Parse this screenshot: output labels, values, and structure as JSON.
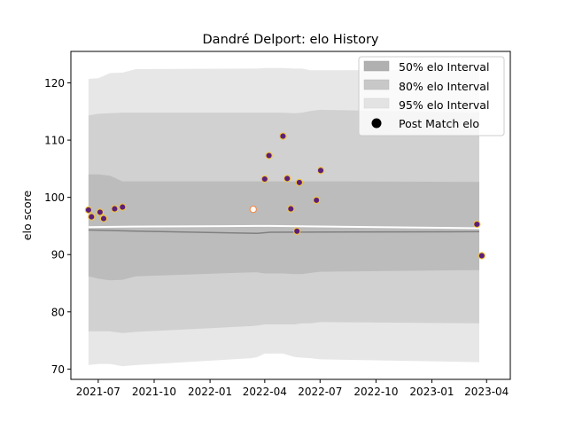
{
  "chart_data": {
    "type": "scatter",
    "title": "Dandré Delport: elo History",
    "xlabel": "",
    "ylabel": "elo score",
    "xlim": [
      "2021-05-17",
      "2023-05-10"
    ],
    "ylim": [
      68.2,
      125.5
    ],
    "x_ticks": [
      "2021-07-01",
      "2021-10-01",
      "2022-01-01",
      "2022-04-01",
      "2022-07-01",
      "2022-10-01",
      "2023-01-01",
      "2023-04-01"
    ],
    "x_tick_labels": [
      "2021-07",
      "2021-10",
      "2022-01",
      "2022-04",
      "2022-07",
      "2022-10",
      "2023-01",
      "2023-04"
    ],
    "y_ticks": [
      70,
      80,
      90,
      100,
      110,
      120
    ],
    "y_tick_labels": [
      "70",
      "80",
      "90",
      "100",
      "110",
      "120"
    ],
    "grid": false,
    "legend_position": "top-right",
    "legend": [
      {
        "label": "50% elo Interval",
        "kind": "band",
        "color": "#b0b0b0"
      },
      {
        "label": "80% elo Interval",
        "kind": "band",
        "color": "#c8c8c8"
      },
      {
        "label": "95% elo Interval",
        "kind": "band",
        "color": "#e3e3e3"
      },
      {
        "label": "Post Match elo",
        "kind": "marker",
        "color": "#000000"
      }
    ],
    "bands": {
      "x": [
        "2021-06-15",
        "2021-07-01",
        "2021-07-20",
        "2021-08-10",
        "2021-09-01",
        "2022-03-10",
        "2022-03-20",
        "2022-04-01",
        "2022-05-01",
        "2022-05-20",
        "2022-06-01",
        "2022-06-15",
        "2022-07-01",
        "2023-03-20"
      ],
      "band_95": {
        "color": "#e3e3e3",
        "lower": [
          70.7,
          70.9,
          70.9,
          70.5,
          70.7,
          71.9,
          72.1,
          72.7,
          72.7,
          72.1,
          72.0,
          71.9,
          71.7,
          71.2
        ],
        "upper": [
          120.7,
          120.8,
          121.7,
          121.8,
          122.4,
          122.5,
          122.5,
          122.6,
          122.6,
          122.5,
          122.5,
          122.2,
          122.2,
          122.3
        ]
      },
      "band_80": {
        "color": "#cccccc",
        "lower": [
          76.6,
          76.6,
          76.6,
          76.3,
          76.5,
          77.5,
          77.6,
          77.8,
          77.8,
          77.8,
          78.0,
          78.0,
          78.2,
          78.0
        ],
        "upper": [
          114.3,
          114.6,
          114.7,
          114.8,
          114.8,
          114.8,
          114.8,
          114.8,
          114.8,
          114.7,
          114.8,
          115.1,
          115.3,
          114.8
        ]
      },
      "band_50": {
        "color": "#b8b8b8",
        "lower": [
          86.2,
          85.8,
          85.5,
          85.6,
          86.2,
          86.9,
          86.9,
          86.7,
          86.7,
          86.6,
          86.6,
          86.8,
          87.0,
          87.3
        ],
        "upper": [
          104.0,
          104.0,
          103.8,
          102.8,
          102.8,
          102.8,
          102.8,
          102.8,
          102.8,
          102.8,
          102.8,
          102.8,
          102.8,
          102.7
        ]
      }
    },
    "lines": [
      {
        "role": "mean",
        "color": "#808080",
        "x": [
          "2021-06-15",
          "2021-09-01",
          "2022-03-20",
          "2022-04-10",
          "2023-03-20"
        ],
        "y": [
          94.3,
          94.1,
          93.7,
          93.9,
          94.0
        ]
      },
      {
        "role": "expected",
        "color": "#ffffff",
        "x": [
          "2021-06-15",
          "2021-09-01",
          "2022-03-20",
          "2022-04-10",
          "2023-03-20"
        ],
        "y": [
          94.8,
          94.9,
          95.0,
          95.0,
          94.6
        ]
      }
    ],
    "series": [
      {
        "name": "Post Match elo",
        "fill": "#5c1f7a",
        "edge": "#f2c53d",
        "x": [
          "2021-06-15",
          "2021-06-20",
          "2021-07-04",
          "2021-07-10",
          "2021-07-28",
          "2021-08-10",
          "2022-04-01",
          "2022-04-08",
          "2022-05-01",
          "2022-05-08",
          "2022-05-14",
          "2022-05-24",
          "2022-05-28",
          "2022-06-25",
          "2022-07-02",
          "2023-03-16",
          "2023-03-24"
        ],
        "y": [
          97.8,
          96.6,
          97.4,
          96.3,
          98.0,
          98.3,
          103.2,
          107.3,
          110.7,
          103.3,
          98.0,
          94.1,
          102.6,
          99.5,
          104.7,
          95.3,
          89.8
        ]
      },
      {
        "name": "",
        "fill": "#ffffff",
        "edge": "#f08a4b",
        "x": [
          "2022-03-13"
        ],
        "y": [
          97.9
        ]
      }
    ]
  }
}
